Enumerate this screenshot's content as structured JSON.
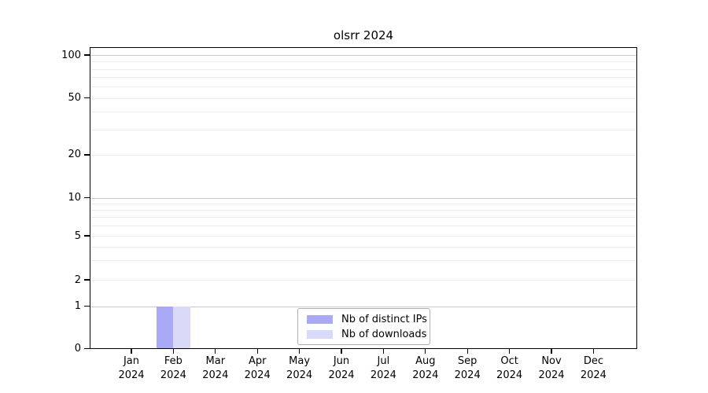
{
  "chart_data": {
    "type": "bar",
    "title": "olsrr 2024",
    "xlabel": "",
    "ylabel": "",
    "x_categories": [
      {
        "month": "Jan",
        "year": "2024"
      },
      {
        "month": "Feb",
        "year": "2024"
      },
      {
        "month": "Mar",
        "year": "2024"
      },
      {
        "month": "Apr",
        "year": "2024"
      },
      {
        "month": "May",
        "year": "2024"
      },
      {
        "month": "Jun",
        "year": "2024"
      },
      {
        "month": "Jul",
        "year": "2024"
      },
      {
        "month": "Aug",
        "year": "2024"
      },
      {
        "month": "Sep",
        "year": "2024"
      },
      {
        "month": "Oct",
        "year": "2024"
      },
      {
        "month": "Nov",
        "year": "2024"
      },
      {
        "month": "Dec",
        "year": "2024"
      }
    ],
    "series": [
      {
        "name": "Nb of distinct IPs",
        "color": "#a9a9f5",
        "values": [
          0,
          1,
          0,
          0,
          0,
          0,
          0,
          0,
          0,
          0,
          0,
          0
        ]
      },
      {
        "name": "Nb of downloads",
        "color": "#d9d9f8",
        "values": [
          0,
          1,
          0,
          0,
          0,
          0,
          0,
          0,
          0,
          0,
          0,
          0
        ]
      }
    ],
    "y_axis": {
      "scale": "symlog",
      "tick_labels": [
        "100",
        "50",
        "20",
        "10",
        "5",
        "2",
        "1",
        "0"
      ],
      "tick_values": [
        100,
        50,
        20,
        10,
        5,
        2,
        1,
        0
      ],
      "emphasized_gridlines": [
        100,
        10,
        1
      ],
      "minor_gridlines": [
        90,
        80,
        70,
        60,
        40,
        30,
        9,
        8,
        7,
        6,
        4,
        3
      ],
      "ylim": [
        0,
        113
      ]
    },
    "grid": "horizontal",
    "legend": {
      "position": "bottom-center",
      "entries": [
        "Nb of distinct IPs",
        "Nb of downloads"
      ]
    }
  },
  "colors": {
    "bar_distinct_ips": "#a9a9f5",
    "bar_downloads": "#d9d9f8",
    "grid_major": "#c8c8c8",
    "grid_minor": "#ececec",
    "spine": "#000000",
    "legend_border": "#b0b0b0",
    "background": "#ffffff"
  }
}
